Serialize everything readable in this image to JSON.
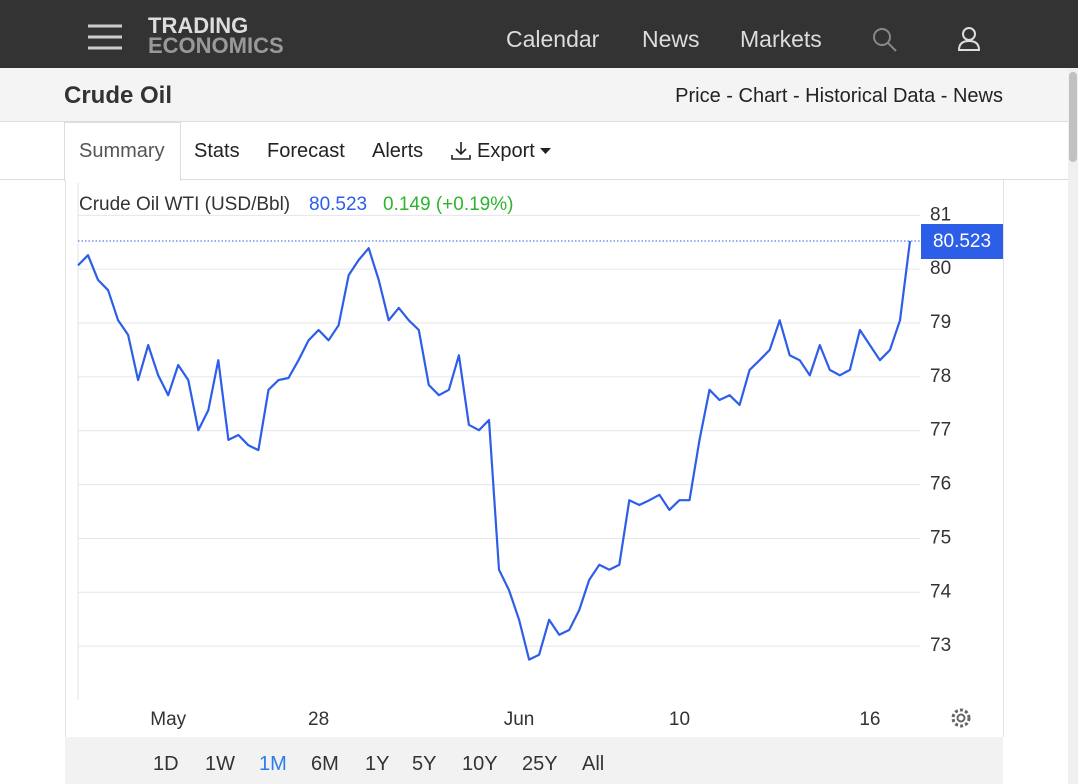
{
  "header": {
    "logo": [
      "TRADING",
      "ECONOMICS"
    ],
    "nav": [
      "Calendar",
      "News",
      "Markets"
    ]
  },
  "subheader": {
    "title": "Crude Oil",
    "links": "Price - Chart - Historical Data - News"
  },
  "tabs": [
    "Summary",
    "Stats",
    "Forecast",
    "Alerts",
    "Export"
  ],
  "chart_data": {
    "type": "line",
    "change": "0.149 (+0.19%)",
    "categories": [
      null,
      null,
      null,
      null,
      null,
      null,
      null,
      null,
      null,
      "May",
      null,
      null,
      null,
      null,
      null,
      null,
      null,
      null,
      null,
      null,
      null,
      null,
      null,
      null,
      "28",
      null,
      null,
      null,
      null,
      null,
      null,
      null,
      null,
      null,
      null,
      null,
      null,
      null,
      null,
      null,
      null,
      null,
      null,
      null,
      "Jun",
      null,
      null,
      null,
      null,
      null,
      null,
      null,
      null,
      null,
      null,
      null,
      null,
      null,
      null,
      null,
      "10",
      null,
      null,
      null,
      null,
      null,
      null,
      null,
      null,
      null,
      null,
      null,
      null,
      null,
      null,
      null,
      null,
      null,
      null,
      "16",
      null,
      null,
      null,
      null
    ],
    "series": [
      {
        "name": "Crude Oil WTI (USD/Bbl)",
        "color": "#2d5ee8",
        "values": [
          80.07,
          80.26,
          79.8,
          79.61,
          79.05,
          78.78,
          77.94,
          78.59,
          78.03,
          77.66,
          78.22,
          77.94,
          77.01,
          77.38,
          78.31,
          76.83,
          76.92,
          76.73,
          76.64,
          77.76,
          77.94,
          77.98,
          78.31,
          78.68,
          78.87,
          78.68,
          78.96,
          79.89,
          80.17,
          80.39,
          79.8,
          79.05,
          79.28,
          79.05,
          78.87,
          77.85,
          77.66,
          77.76,
          78.4,
          77.11,
          77.01,
          77.2,
          74.42,
          74.04,
          73.49,
          72.75,
          72.84,
          73.49,
          73.21,
          73.3,
          73.67,
          74.23,
          74.51,
          74.42,
          74.51,
          75.71,
          75.62,
          75.71,
          75.81,
          75.53,
          75.71,
          75.71,
          76.83,
          77.76,
          77.57,
          77.66,
          77.48,
          78.13,
          78.31,
          78.5,
          79.05,
          78.4,
          78.31,
          78.03,
          78.59,
          78.13,
          78.03,
          78.13,
          78.87,
          78.59,
          78.31,
          78.5,
          79.05,
          80.523
        ]
      }
    ],
    "ylim": [
      72,
      81.6
    ],
    "yticks": [
      73,
      74,
      75,
      76,
      77,
      78,
      79,
      80,
      81
    ],
    "grid": true,
    "ranges": [
      "1D",
      "1W",
      "1M",
      "6M",
      "1Y",
      "5Y",
      "10Y",
      "25Y",
      "All"
    ],
    "active_range": 2
  }
}
